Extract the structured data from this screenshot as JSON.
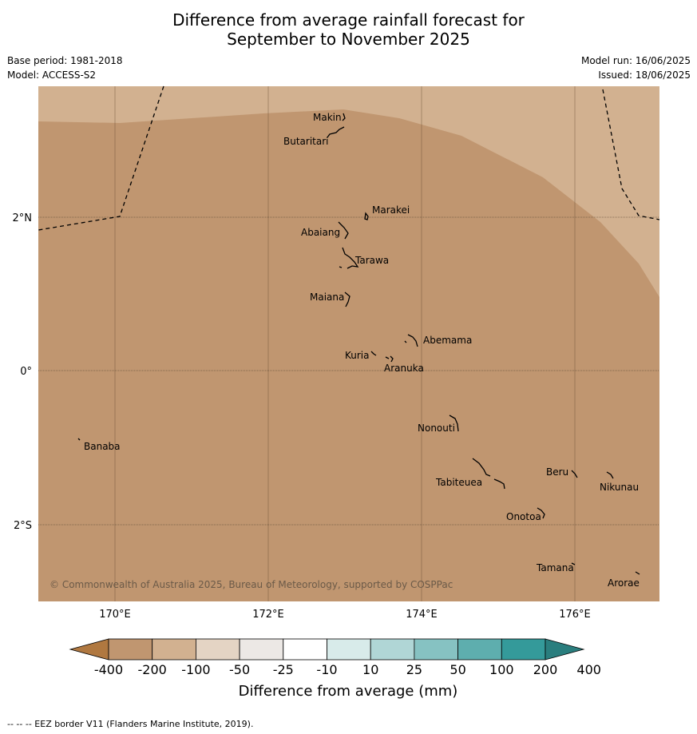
{
  "header": {
    "title_line1": "Difference from average rainfall forecast for",
    "title_line2": "September to November 2025",
    "base_period": "Base period: 1981-2018",
    "model": "Model: ACCESS-S2",
    "model_run": "Model run: 16/06/2025",
    "issued": "Issued: 18/06/2025"
  },
  "map": {
    "longitude_labels": [
      "170°E",
      "172°E",
      "174°E",
      "176°E"
    ],
    "latitude_labels": [
      "2°N",
      "0°",
      "2°S"
    ],
    "places": [
      "Makin",
      "Butaritari",
      "Marakei",
      "Abaiang",
      "Tarawa",
      "Maiana",
      "Abemama",
      "Kuria",
      "Aranuka",
      "Nonouti",
      "Banaba",
      "Beru",
      "Nikunau",
      "Tabiteuea",
      "Onotoa",
      "Tamana",
      "Arorae"
    ],
    "copyright": "© Commonwealth of Australia 2025, Bureau of Meteorology, supported by COSPPac",
    "colors": {
      "category_-200_-100": "#c09670",
      "category_-100_-50": "#d2b190",
      "eez_border": "#000000"
    }
  },
  "colorbar": {
    "ticks": [
      "-400",
      "-200",
      "-100",
      "-50",
      "-25",
      "-10",
      "10",
      "25",
      "50",
      "100",
      "200",
      "400"
    ],
    "colors": [
      "#b07840",
      "#c09670",
      "#d2b190",
      "#e4d4c4",
      "#ece8e5",
      "#ffffff",
      "#d8ebea",
      "#b0d6d6",
      "#86c2c2",
      "#5eaeae",
      "#349a9a",
      "#2a7e7e"
    ],
    "label": "Difference from average (mm)"
  },
  "footer": {
    "eez_note": "--  --  -- EEZ border V11 (Flanders Marine Institute, 2019)."
  }
}
